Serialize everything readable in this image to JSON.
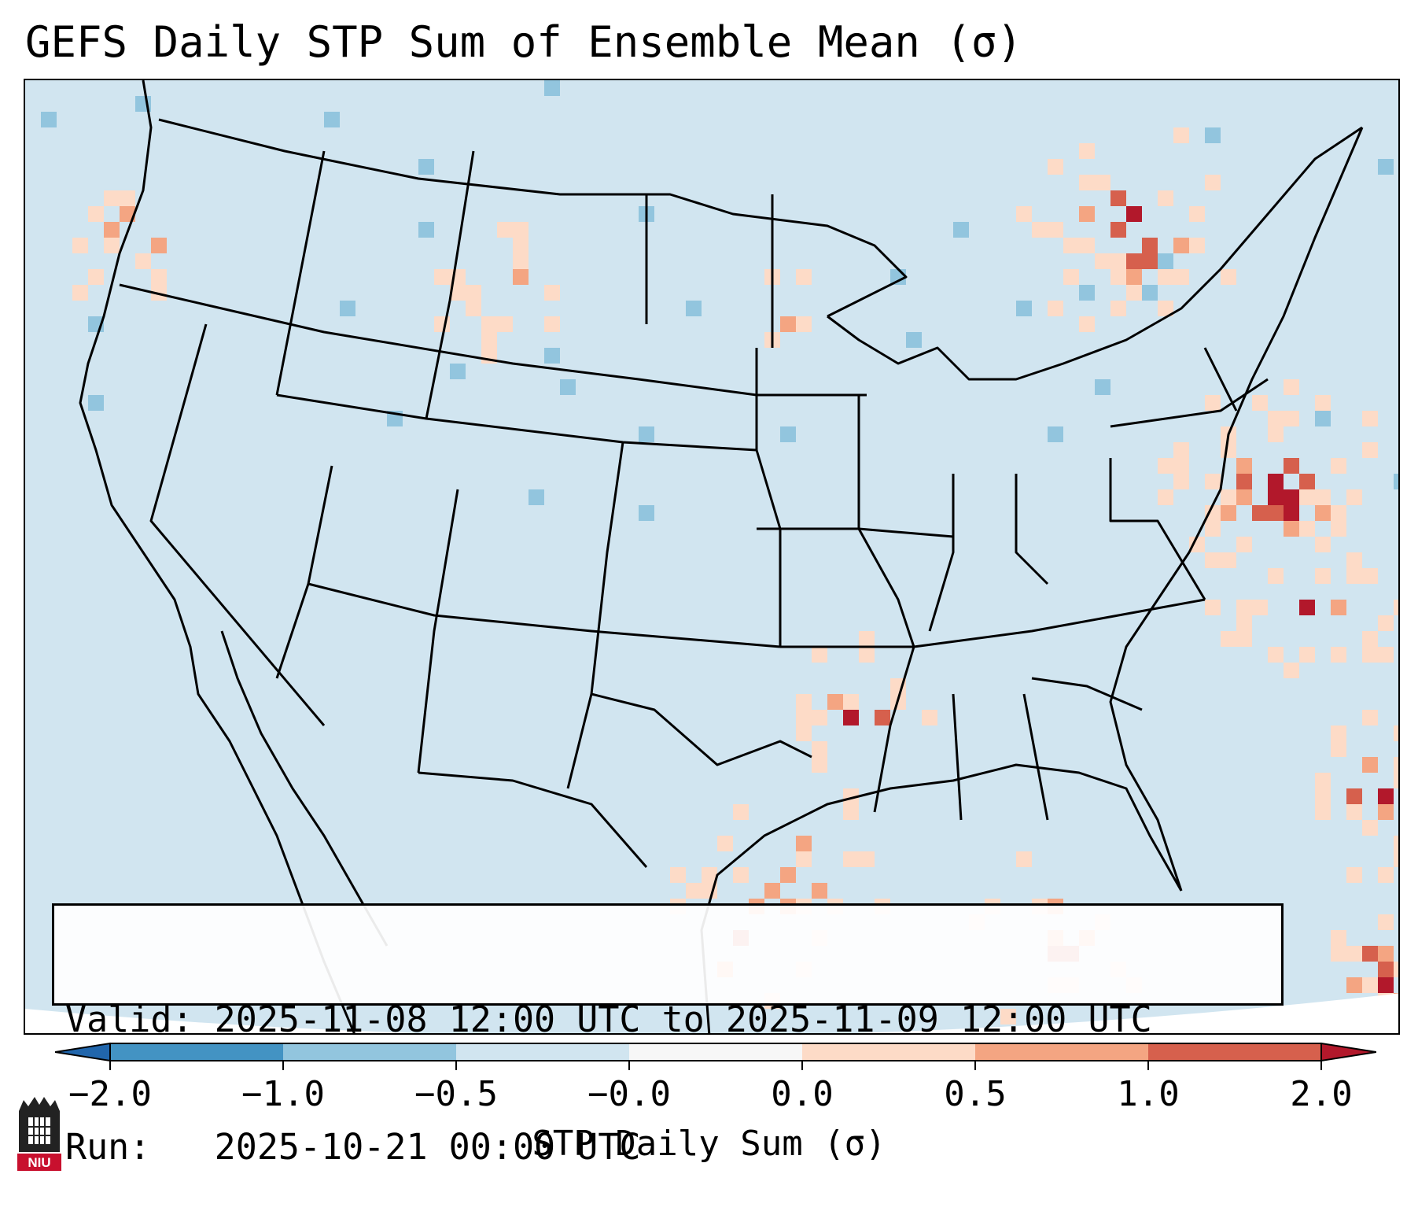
{
  "title": "GEFS Daily STP Sum of Ensemble Mean (σ)",
  "info": {
    "valid_label": "Valid:",
    "valid_value": "2025-11-08 12:00 UTC to 2025-11-09 12:00 UTC",
    "run_label": "Run:",
    "run_value": "2025-10-21 00:00 UTC"
  },
  "colorbar": {
    "label": "STP Daily Sum (σ)",
    "ticks": [
      "−2.0",
      "−1.0",
      "−0.5",
      "−0.0",
      "0.0",
      "0.5",
      "1.0",
      "2.0"
    ],
    "colors": {
      "below_min": "#2166ac",
      "bin_m2_m1": "#4393c3",
      "bin_m1_m05": "#92c5de",
      "bin_m05_m0": "#d1e5f0",
      "bin_0_0": "#f7f7f7",
      "bin_0_05": "#fddbc7",
      "bin_05_1": "#f4a582",
      "bin_1_2": "#d6604d",
      "above_max": "#b2182b"
    }
  },
  "map": {
    "projection": "Lambert conformal",
    "region": "CONUS",
    "background_color": "#d1e5f0"
  },
  "logo": {
    "text": "NIU",
    "icon": "niu-tower-logo-icon"
  }
}
